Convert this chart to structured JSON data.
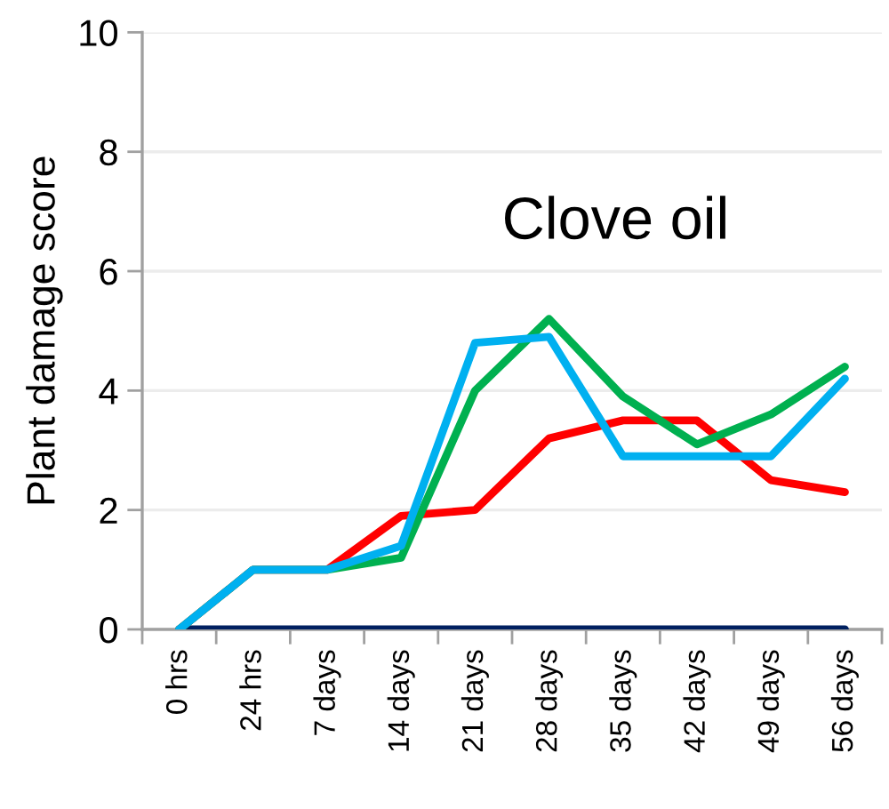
{
  "chart_data": {
    "type": "line",
    "title": "Clove oil",
    "ylabel": "Plant damage score",
    "categories": [
      "0 hrs",
      "24 hrs",
      "7 days",
      "14 days",
      "21 days",
      "28 days",
      "35 days",
      "42 days",
      "49 days",
      "56 days"
    ],
    "series": [
      {
        "color": "#002060",
        "values": [
          0,
          0,
          0,
          0,
          0,
          0,
          0,
          0,
          0,
          0
        ]
      },
      {
        "color": "#ff0000",
        "values": [
          0,
          1,
          1,
          1.9,
          2.0,
          3.2,
          3.5,
          3.5,
          2.5,
          2.3
        ]
      },
      {
        "color": "#00b050",
        "values": [
          0,
          1,
          1,
          1.2,
          4.0,
          5.2,
          3.9,
          3.1,
          3.6,
          4.4
        ]
      },
      {
        "color": "#00b0f0",
        "values": [
          0,
          1,
          1,
          1.4,
          4.8,
          4.9,
          2.9,
          2.9,
          2.9,
          4.2
        ]
      }
    ],
    "ylim": [
      0,
      10
    ],
    "yticks": [
      0,
      2,
      4,
      6,
      8,
      10
    ],
    "grid": "y",
    "marker": "none",
    "line_style": "solid"
  }
}
